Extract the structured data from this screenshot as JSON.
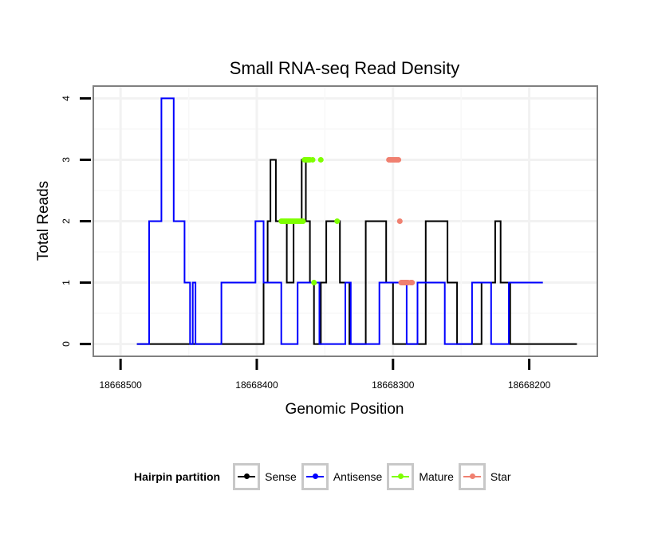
{
  "chart_data": {
    "type": "line",
    "title": "Small RNA-seq Read Density",
    "xlabel": "Genomic Position",
    "ylabel": "Total Reads",
    "xlim": [
      18668520,
      18668150
    ],
    "ylim": [
      -0.2,
      4.2
    ],
    "x_reversed": true,
    "x_ticks": [
      18668500,
      18668400,
      18668300,
      18668200
    ],
    "x_tick_labels": [
      "18668500",
      "18668400",
      "18668300",
      "18668200"
    ],
    "y_ticks": [
      0,
      1,
      2,
      3,
      4
    ],
    "y_tick_labels": [
      "0",
      "1",
      "2",
      "3",
      "4"
    ],
    "series": [
      {
        "name": "Sense",
        "color": "#000000",
        "x": [
          18668488,
          18668440,
          18668440,
          18668432,
          18668432,
          18668430,
          18668430,
          18668428,
          18668428,
          18668420,
          18668420,
          18668410,
          18668410,
          18668404,
          18668404,
          18668402,
          18668402,
          18668395,
          18668395,
          18668392,
          18668392,
          18668390,
          18668390,
          18668387,
          18668387,
          18668386,
          18668386,
          18668380,
          18668380,
          18668378,
          18668378,
          18668373,
          18668373,
          18668367,
          18668367,
          18668364,
          18668364,
          18668361,
          18668361,
          18668358,
          18668358,
          18668353,
          18668353,
          18668349,
          18668349,
          18668345,
          18668345,
          18668343,
          18668343,
          18668341,
          18668341,
          18668339,
          18668339,
          18668332,
          18668332,
          18668327,
          18668327,
          18668324,
          18668324,
          18668320,
          18668320,
          18668305,
          18668305,
          18668300,
          18668300,
          18668297,
          18668297,
          18668289,
          18668289,
          18668286,
          18668286,
          18668281,
          18668281,
          18668276,
          18668276,
          18668260,
          18668260,
          18668253,
          18668253,
          18668235,
          18668235,
          18668230,
          18668230,
          18668225,
          18668225,
          18668221,
          18668221,
          18668218,
          18668218,
          18668214,
          18668214,
          18668208,
          18668208,
          18668200,
          18668200,
          18668192,
          18668192,
          18668185,
          18668185,
          18668175,
          18668175,
          18668165
        ],
        "y": [
          0,
          0,
          0,
          0,
          0,
          0,
          0,
          0,
          0,
          0,
          0,
          0,
          0,
          0,
          0,
          0,
          0,
          0,
          1,
          1,
          2,
          2,
          3,
          3,
          3,
          3,
          2,
          2,
          2,
          2,
          1,
          1,
          2,
          2,
          3,
          3,
          2,
          2,
          1,
          1,
          0,
          0,
          1,
          1,
          2,
          2,
          2,
          2,
          2,
          2,
          2,
          2,
          1,
          1,
          0,
          0,
          0,
          0,
          0,
          0,
          2,
          2,
          1,
          1,
          0,
          0,
          0,
          0,
          0,
          0,
          0,
          0,
          0,
          0,
          2,
          2,
          1,
          1,
          0,
          0,
          1,
          1,
          1,
          1,
          2,
          2,
          1,
          1,
          1,
          1,
          0,
          0,
          0,
          0,
          0,
          0,
          0,
          0,
          0,
          0,
          0,
          0
        ]
      },
      {
        "name": "Antisense",
        "color": "#0000ff",
        "x": [
          18668488,
          18668479,
          18668479,
          18668472,
          18668472,
          18668470,
          18668470,
          18668461,
          18668461,
          18668453,
          18668453,
          18668449,
          18668449,
          18668447,
          18668447,
          18668445,
          18668445,
          18668426,
          18668426,
          18668401,
          18668401,
          18668395,
          18668395,
          18668382,
          18668382,
          18668370,
          18668370,
          18668354,
          18668354,
          18668335,
          18668335,
          18668331,
          18668331,
          18668310,
          18668310,
          18668290,
          18668290,
          18668282,
          18668282,
          18668262,
          18668262,
          18668242,
          18668242,
          18668228,
          18668228,
          18668215,
          18668215,
          18668190
        ],
        "y": [
          0,
          0,
          2,
          2,
          2,
          2,
          4,
          4,
          2,
          2,
          1,
          1,
          0,
          0,
          1,
          1,
          0,
          0,
          1,
          1,
          2,
          2,
          1,
          1,
          0,
          0,
          1,
          1,
          0,
          0,
          1,
          1,
          0,
          0,
          1,
          1,
          0,
          0,
          1,
          1,
          0,
          0,
          1,
          1,
          0,
          0,
          1,
          1
        ]
      },
      {
        "name": "Mature",
        "color": "#7fff00",
        "x": [
          18668353,
          18668341,
          18668358,
          18668359,
          18668361,
          18668362,
          18668363,
          18668364,
          18668365,
          18668366,
          18668367,
          18668368,
          18668369,
          18668370,
          18668371,
          18668372,
          18668373,
          18668374,
          18668375,
          18668376,
          18668377,
          18668378,
          18668379,
          18668380,
          18668381,
          18668382
        ],
        "y": [
          3,
          2,
          1,
          3,
          3,
          3,
          3,
          3,
          3,
          2,
          2,
          2,
          2,
          2,
          2,
          2,
          2,
          2,
          2,
          2,
          2,
          2,
          2,
          2,
          2,
          2
        ]
      },
      {
        "name": "Star",
        "color": "#f08070",
        "x": [
          18668293,
          18668291,
          18668289,
          18668287,
          18668286,
          18668303,
          18668302,
          18668301,
          18668300,
          18668299,
          18668298,
          18668297,
          18668296,
          18668295,
          18668294,
          18668293,
          18668292,
          18668291,
          18668290
        ],
        "y": [
          1,
          1,
          1,
          1,
          1,
          3,
          3,
          3,
          3,
          3,
          3,
          3,
          3,
          2,
          1,
          1,
          1,
          1,
          1
        ]
      }
    ],
    "grid": true,
    "legend_position": "bottom"
  },
  "legend": {
    "title": "Hairpin partition",
    "items": [
      {
        "label": "Sense",
        "color": "#000000"
      },
      {
        "label": "Antisense",
        "color": "#0000ff"
      },
      {
        "label": "Mature",
        "color": "#7fff00"
      },
      {
        "label": "Star",
        "color": "#f08070"
      }
    ]
  }
}
